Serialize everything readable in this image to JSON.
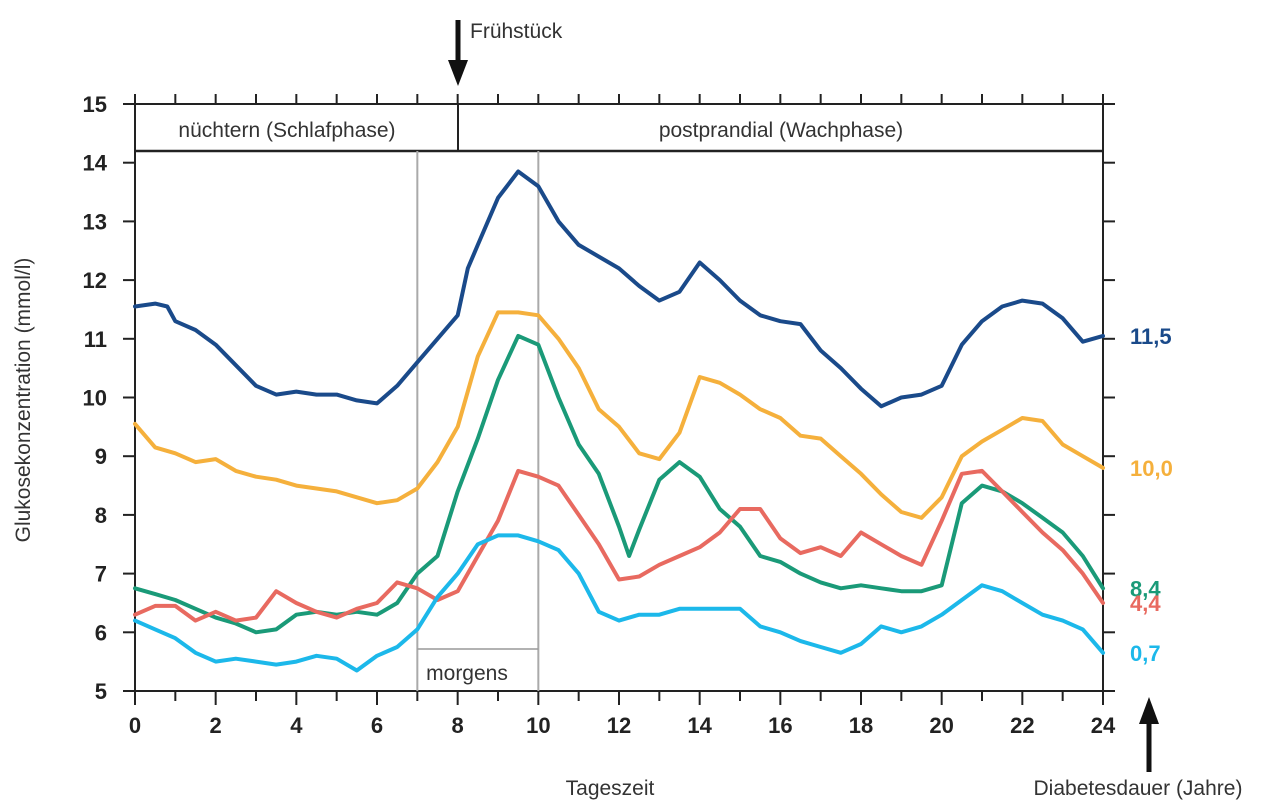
{
  "chart_data": {
    "type": "line",
    "title": "",
    "xlabel": "Tageszeit",
    "ylabel": "Glukosekonzentration (mmol/l)",
    "xlim": [
      0,
      24
    ],
    "ylim": [
      5,
      15
    ],
    "xticks": [
      "0",
      "2",
      "4",
      "6",
      "8",
      "10",
      "12",
      "14",
      "16",
      "18",
      "20",
      "22",
      "24"
    ],
    "yticks": [
      "5",
      "6",
      "7",
      "8",
      "9",
      "10",
      "11",
      "12",
      "13",
      "14",
      "15"
    ],
    "phases": {
      "fasting": "nüchtern (Schlafphase)",
      "postprandial": "postprandial (Wachphase)",
      "boundary": 8
    },
    "morning": {
      "label": "morgens",
      "start": 7,
      "end": 10
    },
    "breakfast": {
      "label": "Frühstück",
      "x": 8
    },
    "legend_title": "Diabetesdauer (Jahre)",
    "series": [
      {
        "name": "11,5",
        "color": "#1a4a8a",
        "x": [
          0,
          0.5,
          0.8,
          1,
          1.5,
          2,
          2.5,
          3,
          3.5,
          4,
          4.5,
          5,
          5.5,
          6,
          6.5,
          7,
          7.5,
          8,
          8.25,
          8.5,
          9,
          9.5,
          10,
          10.5,
          11,
          11.5,
          12,
          12.5,
          13,
          13.5,
          14,
          14.5,
          15,
          15.5,
          16,
          16.5,
          17,
          17.5,
          18,
          18.5,
          19,
          19.5,
          20,
          20.5,
          21,
          21.5,
          22,
          22.5,
          23,
          23.5,
          24
        ],
        "values": [
          11.55,
          11.6,
          11.55,
          11.3,
          11.15,
          10.9,
          10.55,
          10.2,
          10.05,
          10.1,
          10.05,
          10.05,
          9.95,
          9.9,
          10.2,
          10.6,
          11.0,
          11.4,
          12.2,
          12.6,
          13.4,
          13.85,
          13.6,
          13.0,
          12.6,
          12.4,
          12.2,
          11.9,
          11.65,
          11.8,
          12.3,
          12.0,
          11.65,
          11.4,
          11.3,
          11.25,
          10.8,
          10.5,
          10.15,
          9.85,
          10.0,
          10.05,
          10.2,
          10.9,
          11.3,
          11.55,
          11.65,
          11.6,
          11.35,
          10.95,
          11.05
        ]
      },
      {
        "name": "10,0",
        "color": "#f5b03c",
        "x": [
          0,
          0.5,
          1,
          1.5,
          2,
          2.5,
          3,
          3.5,
          4,
          4.5,
          5,
          5.5,
          6,
          6.5,
          7,
          7.5,
          8,
          8.5,
          9,
          9.5,
          10,
          10.5,
          11,
          11.5,
          12,
          12.5,
          13,
          13.5,
          14,
          14.5,
          15,
          15.5,
          16,
          16.5,
          17,
          17.5,
          18,
          18.5,
          19,
          19.5,
          20,
          20.5,
          21,
          21.5,
          22,
          22.5,
          23,
          23.5,
          24
        ],
        "values": [
          9.55,
          9.15,
          9.05,
          8.9,
          8.95,
          8.75,
          8.65,
          8.6,
          8.5,
          8.45,
          8.4,
          8.3,
          8.2,
          8.25,
          8.45,
          8.9,
          9.5,
          10.7,
          11.45,
          11.45,
          11.4,
          11.0,
          10.5,
          9.8,
          9.5,
          9.05,
          8.95,
          9.4,
          10.35,
          10.25,
          10.05,
          9.8,
          9.65,
          9.35,
          9.3,
          9.0,
          8.7,
          8.35,
          8.05,
          7.95,
          8.3,
          9.0,
          9.25,
          9.45,
          9.65,
          9.6,
          9.2,
          9.0,
          8.8
        ]
      },
      {
        "name": "8,4",
        "color": "#1a9a78",
        "x": [
          0,
          0.5,
          1,
          1.5,
          2,
          2.5,
          3,
          3.5,
          4,
          4.5,
          5,
          5.5,
          6,
          6.5,
          7,
          7.5,
          8,
          8.5,
          9,
          9.5,
          10,
          10.5,
          11,
          11.5,
          12,
          12.25,
          12.5,
          13,
          13.5,
          14,
          14.5,
          15,
          15.5,
          16,
          16.5,
          17,
          17.5,
          18,
          18.5,
          19,
          19.5,
          20,
          20.5,
          21,
          21.5,
          22,
          22.5,
          23,
          23.5,
          24
        ],
        "values": [
          6.75,
          6.65,
          6.55,
          6.4,
          6.25,
          6.15,
          6.0,
          6.05,
          6.3,
          6.35,
          6.3,
          6.35,
          6.3,
          6.5,
          7.0,
          7.3,
          8.4,
          9.3,
          10.3,
          11.05,
          10.9,
          10.0,
          9.2,
          8.7,
          7.8,
          7.3,
          7.75,
          8.6,
          8.9,
          8.65,
          8.1,
          7.8,
          7.3,
          7.2,
          7.0,
          6.85,
          6.75,
          6.8,
          6.75,
          6.7,
          6.7,
          6.8,
          8.2,
          8.5,
          8.4,
          8.2,
          7.95,
          7.7,
          7.3,
          6.75
        ]
      },
      {
        "name": "4,4",
        "color": "#e86a60",
        "x": [
          0,
          0.5,
          1,
          1.5,
          2,
          2.5,
          3,
          3.5,
          4,
          4.5,
          5,
          5.5,
          6,
          6.5,
          7,
          7.5,
          8,
          8.5,
          9,
          9.5,
          10,
          10.5,
          11,
          11.5,
          12,
          12.5,
          13,
          13.5,
          14,
          14.5,
          15,
          15.5,
          16,
          16.5,
          17,
          17.5,
          18,
          18.5,
          19,
          19.5,
          20,
          20.5,
          21,
          21.5,
          22,
          22.5,
          23,
          23.5,
          24
        ],
        "values": [
          6.3,
          6.45,
          6.45,
          6.2,
          6.35,
          6.2,
          6.25,
          6.7,
          6.5,
          6.35,
          6.25,
          6.4,
          6.5,
          6.85,
          6.75,
          6.55,
          6.7,
          7.3,
          7.9,
          8.75,
          8.65,
          8.5,
          8.0,
          7.5,
          6.9,
          6.95,
          7.15,
          7.3,
          7.45,
          7.7,
          8.1,
          8.1,
          7.6,
          7.35,
          7.45,
          7.3,
          7.7,
          7.5,
          7.3,
          7.15,
          7.9,
          8.7,
          8.75,
          8.4,
          8.05,
          7.7,
          7.4,
          7.0,
          6.5
        ]
      },
      {
        "name": "0,7",
        "color": "#1cb8ea",
        "x": [
          0,
          0.5,
          1,
          1.5,
          2,
          2.5,
          3,
          3.5,
          4,
          4.5,
          5,
          5.5,
          6,
          6.5,
          7,
          7.5,
          8,
          8.5,
          9,
          9.5,
          10,
          10.5,
          11,
          11.5,
          12,
          12.5,
          13,
          13.5,
          14,
          14.5,
          15,
          15.5,
          16,
          16.5,
          17,
          17.5,
          18,
          18.5,
          19,
          19.5,
          20,
          20.5,
          21,
          21.5,
          22,
          22.5,
          23,
          23.5,
          24
        ],
        "values": [
          6.2,
          6.05,
          5.9,
          5.65,
          5.5,
          5.55,
          5.5,
          5.45,
          5.5,
          5.6,
          5.55,
          5.35,
          5.6,
          5.75,
          6.05,
          6.6,
          7.0,
          7.5,
          7.65,
          7.65,
          7.55,
          7.4,
          7.0,
          6.35,
          6.2,
          6.3,
          6.3,
          6.4,
          6.4,
          6.4,
          6.4,
          6.1,
          6.0,
          5.85,
          5.75,
          5.65,
          5.8,
          6.1,
          6.0,
          6.1,
          6.3,
          6.55,
          6.8,
          6.7,
          6.5,
          6.3,
          6.2,
          6.05,
          5.65
        ]
      }
    ]
  }
}
